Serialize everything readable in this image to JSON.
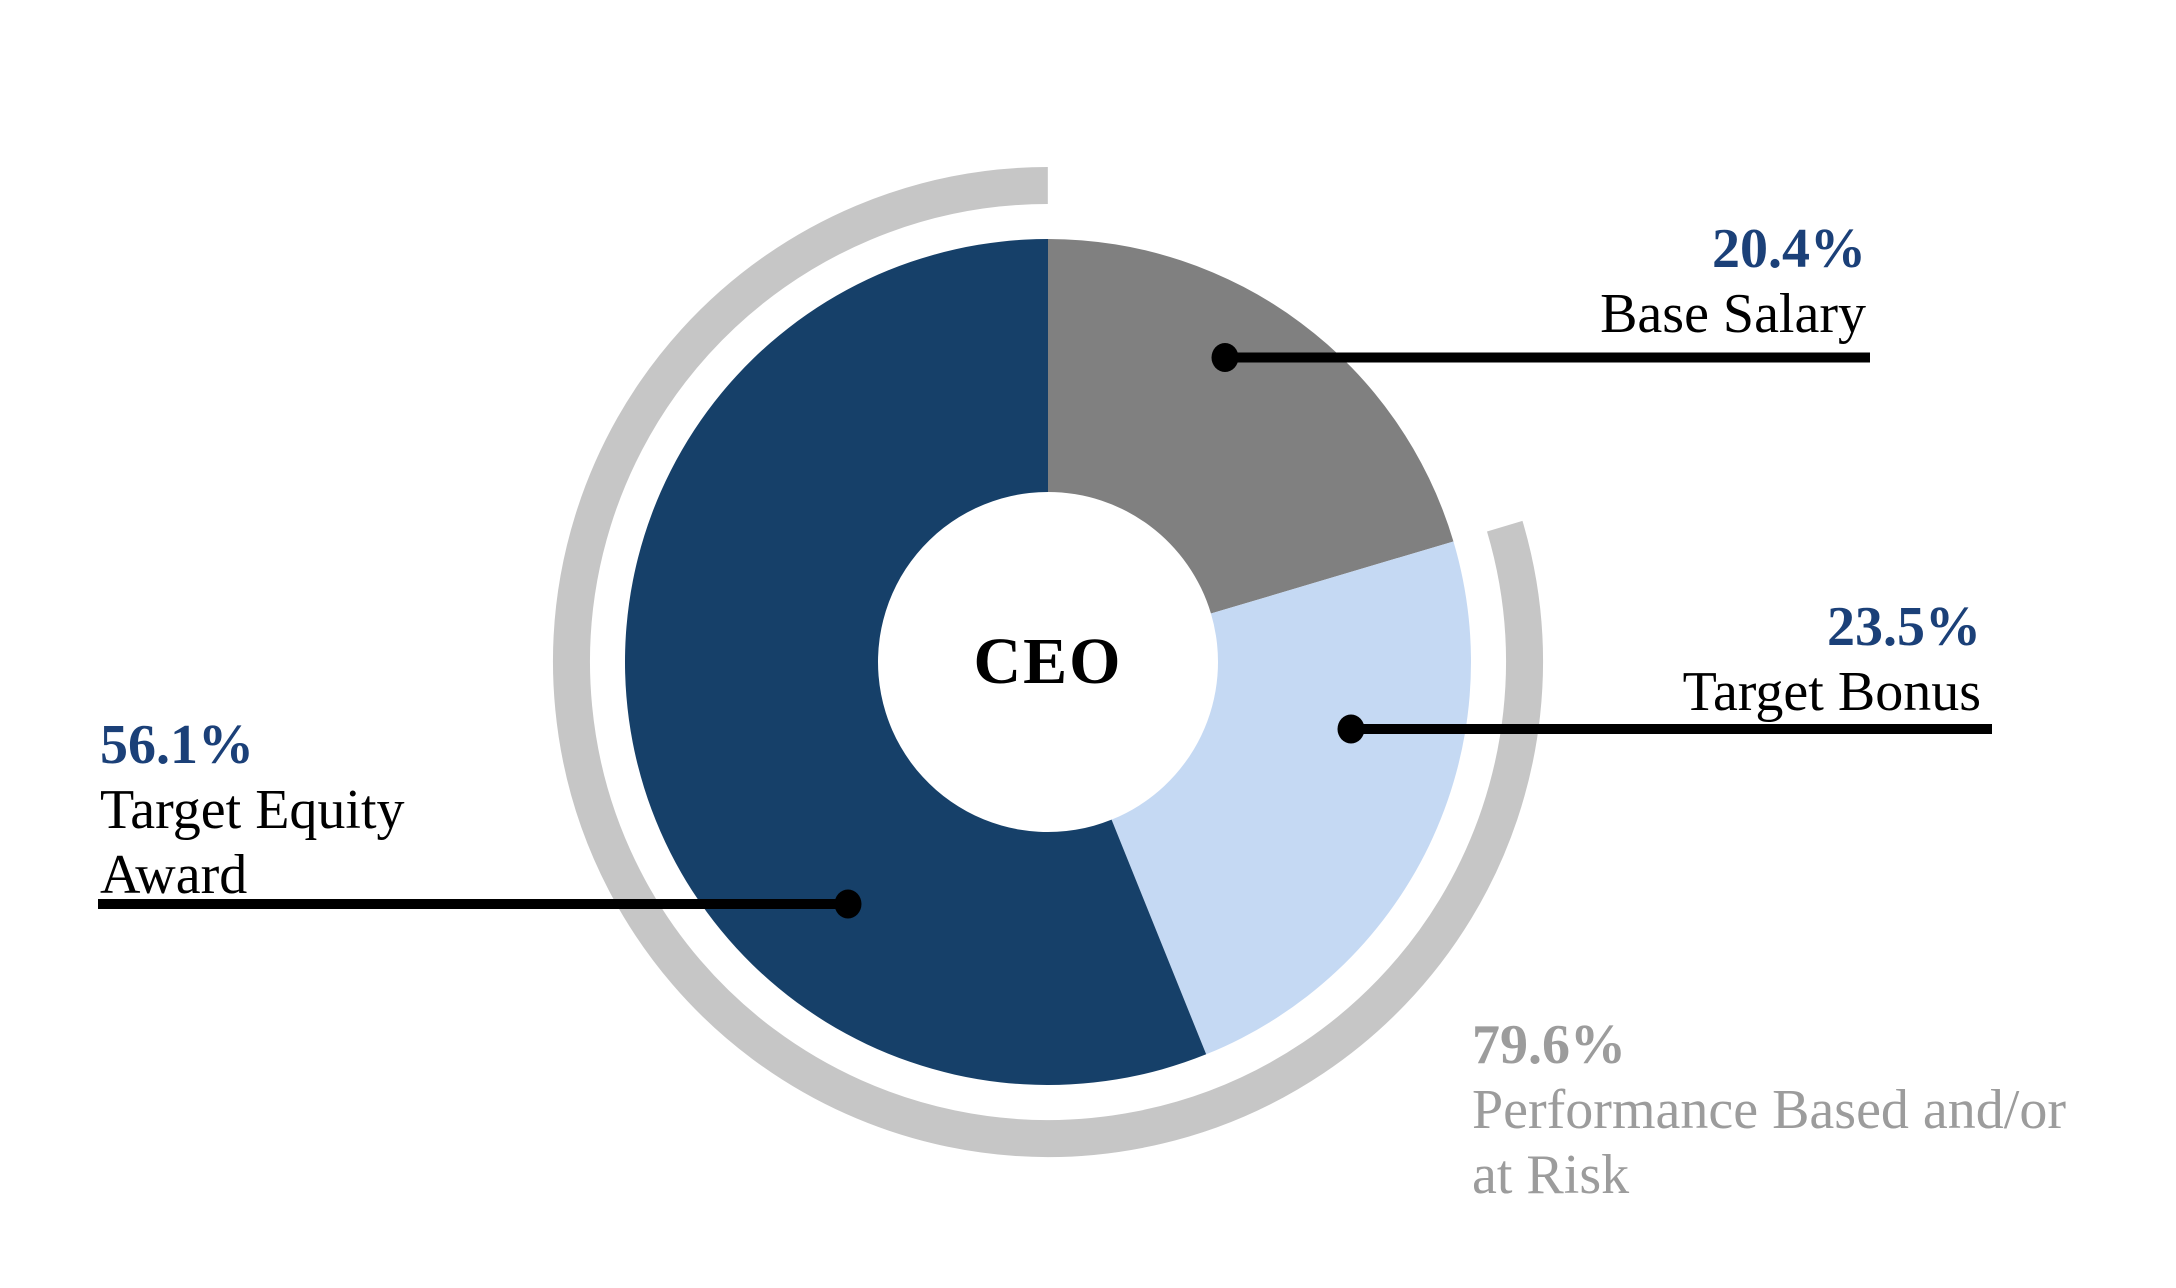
{
  "center_label": "CEO",
  "colors": {
    "slice_base_salary": "#808080",
    "slice_target_bonus": "#C5D9F3",
    "slice_target_equity": "#164069",
    "outer_arc": "#C6C6C6",
    "navy_text": "#1B4078",
    "gray_text": "#9C9C9C",
    "leader_line": "#000000"
  },
  "chart_data": {
    "type": "pie",
    "subtype": "donut",
    "center_label": "CEO",
    "start_angle_deg": 0,
    "direction": "clockwise",
    "donut_hole_ratio": 0.4,
    "categories": [
      "Base Salary",
      "Target Bonus",
      "Target Equity Award"
    ],
    "values": [
      20.4,
      23.5,
      56.1
    ],
    "slices": [
      {
        "label": "Base Salary",
        "value": 20.4,
        "color": "#808080"
      },
      {
        "label": "Target Bonus",
        "value": 23.5,
        "color": "#C5D9F3"
      },
      {
        "label": "Target Equity Award",
        "value": 56.1,
        "color": "#164069"
      }
    ],
    "outer_arc_annotation": {
      "label": "Performance Based and/or at Risk",
      "value": 79.6,
      "color": "#C6C6C6",
      "covers": [
        "Target Bonus",
        "Target Equity Award"
      ]
    }
  },
  "callouts": {
    "base_salary": {
      "pct": "20.4%",
      "name": "Base Salary"
    },
    "target_bonus": {
      "pct": "23.5%",
      "name": "Target Bonus"
    },
    "target_equity": {
      "pct": "56.1%",
      "name_line1": "Target Equity",
      "name_line2": "Award"
    },
    "performance": {
      "pct": "79.6%",
      "name_line1": "Performance Based and/or",
      "name_line2": "at Risk"
    }
  }
}
